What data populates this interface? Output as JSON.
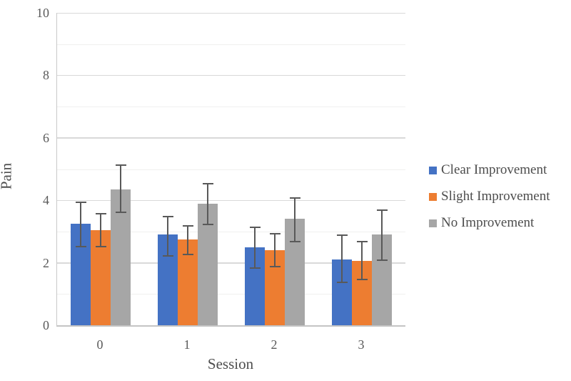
{
  "chart_data": {
    "type": "bar",
    "title": "",
    "xlabel": "Session",
    "ylabel": "Pain",
    "categories": [
      "0",
      "1",
      "2",
      "3"
    ],
    "series": [
      {
        "name": "Clear Improvement",
        "color": "#4472C4",
        "values": [
          3.25,
          2.9,
          2.5,
          2.1
        ],
        "error_low": [
          2.5,
          2.2,
          1.8,
          1.35
        ],
        "error_high": [
          3.95,
          3.5,
          3.15,
          2.9
        ]
      },
      {
        "name": "Slight Improvement",
        "color": "#ED7D31",
        "values": [
          3.05,
          2.75,
          2.4,
          2.05
        ],
        "error_low": [
          2.5,
          2.25,
          1.85,
          1.45
        ],
        "error_high": [
          3.6,
          3.2,
          2.95,
          2.7
        ]
      },
      {
        "name": "No Improvement",
        "color": "#A6A6A6",
        "values": [
          4.35,
          3.9,
          3.4,
          2.9
        ],
        "error_low": [
          3.6,
          3.2,
          2.65,
          2.05
        ],
        "error_high": [
          5.15,
          4.55,
          4.1,
          3.7
        ]
      }
    ],
    "ylim": [
      0,
      10
    ],
    "ytick_step": 2,
    "yticks": [
      "0",
      "2",
      "4",
      "6",
      "8",
      "10"
    ],
    "grid": "horizontal; major every 2, minor every 1",
    "legend_position": "right",
    "colors": {
      "error_bar": "#595959",
      "axis_line": "#c4c4c4",
      "gridline_major": "#d9d9d9",
      "gridline_minor": "#f0f0ef",
      "tick_text": "#5a5a5a",
      "title_text": "#4d4d4d"
    }
  }
}
